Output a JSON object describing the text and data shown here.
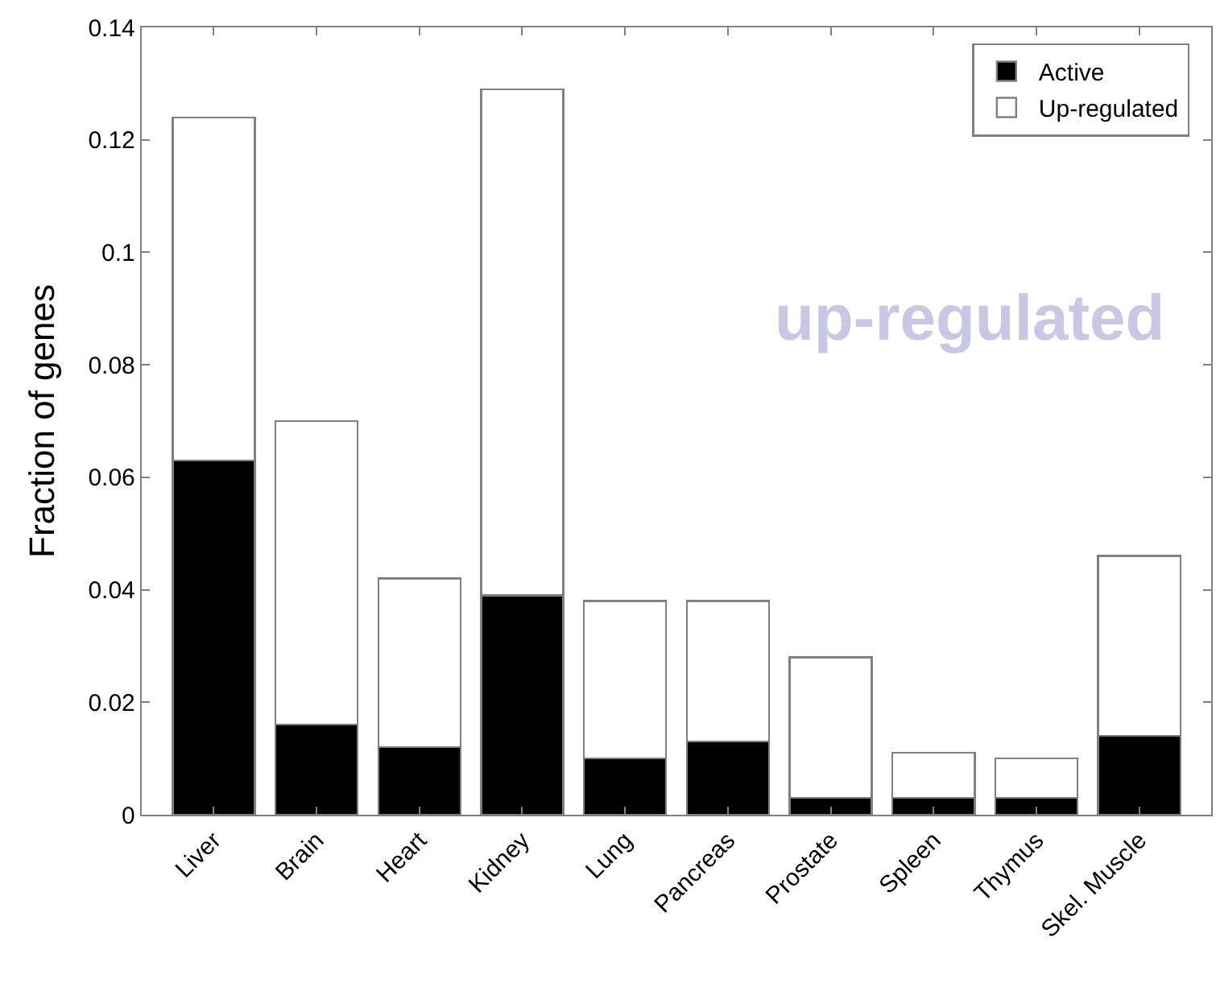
{
  "chart_data": {
    "type": "bar",
    "stacked": true,
    "ylabel": "Fraction of genes",
    "categories": [
      "Liver",
      "Brain",
      "Heart",
      "Kidney",
      "Lung",
      "Pancreas",
      "Prostate",
      "Spleen",
      "Thymus",
      "Skel. Muscle"
    ],
    "series": [
      {
        "name": "Active",
        "color": "#000000",
        "values": [
          0.063,
          0.016,
          0.012,
          0.039,
          0.01,
          0.013,
          0.003,
          0.003,
          0.003,
          0.014
        ]
      },
      {
        "name": "Up-regulated",
        "color": "#ffffff",
        "values": [
          0.061,
          0.054,
          0.03,
          0.09,
          0.028,
          0.025,
          0.025,
          0.008,
          0.007,
          0.032
        ]
      }
    ],
    "ylim": [
      0,
      0.14
    ],
    "yticks": [
      0,
      0.02,
      0.04,
      0.06,
      0.08,
      0.1,
      0.12,
      0.14
    ],
    "annotations": [
      "up-regulated"
    ],
    "legend": "top right"
  }
}
